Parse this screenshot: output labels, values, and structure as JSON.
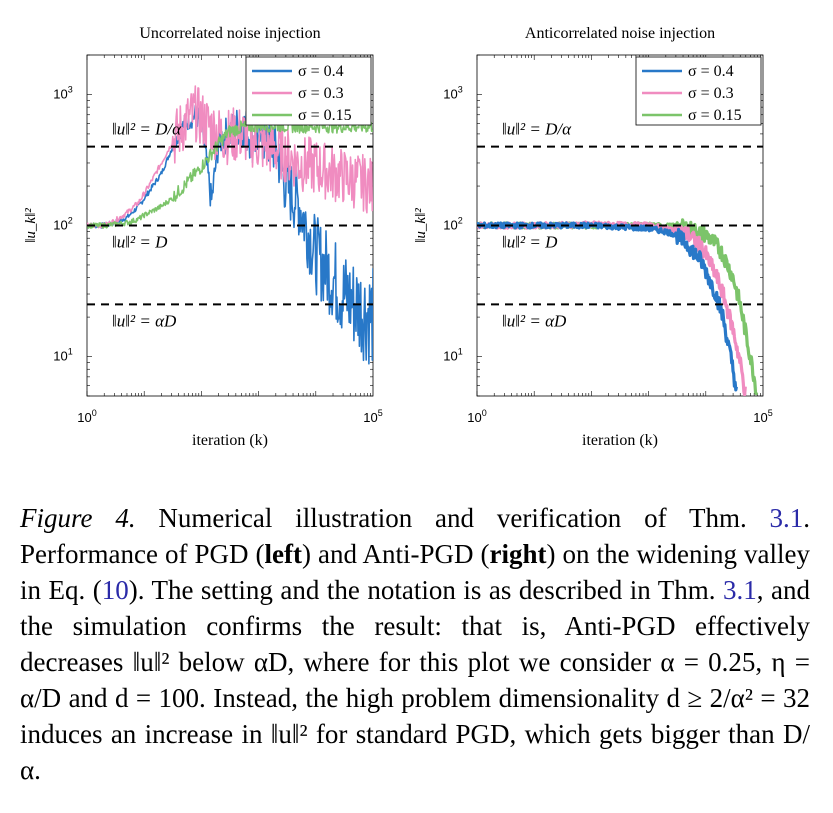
{
  "chart_data": [
    {
      "type": "line",
      "title": "Uncorrelated noise injection",
      "xlabel": "iteration (k)",
      "ylabel": "‖u_k‖²",
      "xscale": "log",
      "yscale": "log",
      "xlim": [
        1,
        100000
      ],
      "ylim": [
        5,
        2000
      ],
      "xticks": [
        {
          "value": 1,
          "base": "10",
          "exp": "0"
        },
        {
          "value": 100000,
          "base": "10",
          "exp": "5"
        }
      ],
      "yticks": [
        {
          "value": 10,
          "base": "10",
          "exp": "1"
        },
        {
          "value": 100,
          "base": "10",
          "exp": "2"
        },
        {
          "value": 1000,
          "base": "10",
          "exp": "3"
        }
      ],
      "grid": false,
      "legend_position": "top-right",
      "reference_lines": [
        {
          "value": 400,
          "label": "‖u‖² = D/α"
        },
        {
          "value": 100,
          "label": "‖u‖² = D"
        },
        {
          "value": 25,
          "label": "‖u‖² = αD"
        }
      ],
      "series": [
        {
          "name": "σ = 0.4",
          "color": "#2878c8",
          "x": [
            1,
            2,
            3,
            5,
            8,
            12,
            20,
            30,
            50,
            80,
            100,
            150,
            200,
            300,
            500,
            800,
            1000,
            2000,
            3000,
            5000,
            8000,
            10000,
            20000,
            30000,
            50000,
            100000
          ],
          "y": [
            100,
            100,
            105,
            115,
            140,
            180,
            250,
            380,
            600,
            700,
            600,
            150,
            450,
            500,
            600,
            450,
            500,
            400,
            200,
            150,
            80,
            60,
            40,
            30,
            25,
            20
          ]
        },
        {
          "name": "σ = 0.3",
          "color": "#f08cc0",
          "x": [
            1,
            2,
            3,
            5,
            8,
            12,
            20,
            30,
            50,
            80,
            100,
            150,
            200,
            300,
            500,
            800,
            1000,
            2000,
            3000,
            5000,
            10000,
            20000,
            50000,
            100000
          ],
          "y": [
            100,
            100,
            108,
            125,
            150,
            200,
            300,
            420,
            600,
            720,
            650,
            560,
            500,
            480,
            500,
            450,
            420,
            380,
            350,
            300,
            280,
            250,
            220,
            200
          ]
        },
        {
          "name": "σ = 0.15",
          "color": "#7cc46a",
          "x": [
            1,
            2,
            3,
            5,
            8,
            10,
            20,
            30,
            50,
            100,
            200,
            300,
            500,
            1000,
            2000,
            5000,
            10000,
            20000,
            50000,
            100000
          ],
          "y": [
            100,
            100,
            102,
            105,
            112,
            120,
            140,
            160,
            200,
            280,
            420,
            520,
            560,
            580,
            580,
            570,
            570,
            570,
            570,
            570
          ]
        }
      ]
    },
    {
      "type": "line",
      "title": "Anticorrelated noise injection",
      "xlabel": "iteration (k)",
      "ylabel": "‖u_k‖²",
      "xscale": "log",
      "yscale": "log",
      "xlim": [
        1,
        100000
      ],
      "ylim": [
        5,
        2000
      ],
      "xticks": [
        {
          "value": 1,
          "base": "10",
          "exp": "0"
        },
        {
          "value": 100000,
          "base": "10",
          "exp": "5"
        }
      ],
      "yticks": [
        {
          "value": 10,
          "base": "10",
          "exp": "1"
        },
        {
          "value": 100,
          "base": "10",
          "exp": "2"
        },
        {
          "value": 1000,
          "base": "10",
          "exp": "3"
        }
      ],
      "grid": false,
      "legend_position": "top-right",
      "reference_lines": [
        {
          "value": 400,
          "label": "‖u‖² = D/α"
        },
        {
          "value": 100,
          "label": "‖u‖² = D"
        },
        {
          "value": 25,
          "label": "‖u‖² = αD"
        }
      ],
      "series": [
        {
          "name": "σ = 0.4",
          "color": "#2878c8",
          "x": [
            1,
            10,
            100,
            1000,
            2000,
            3000,
            5000,
            8000,
            10000,
            15000,
            20000,
            25000,
            30000,
            35000
          ],
          "y": [
            100,
            100,
            100,
            95,
            90,
            85,
            70,
            55,
            45,
            30,
            20,
            12,
            8,
            5
          ]
        },
        {
          "name": "σ = 0.3",
          "color": "#f08cc0",
          "x": [
            1,
            10,
            100,
            1000,
            3000,
            5000,
            8000,
            10000,
            15000,
            20000,
            30000,
            40000,
            50000
          ],
          "y": [
            100,
            100,
            102,
            100,
            92,
            85,
            70,
            60,
            42,
            30,
            16,
            9,
            5
          ]
        },
        {
          "name": "σ = 0.15",
          "color": "#7cc46a",
          "x": [
            1,
            10,
            100,
            1000,
            3000,
            5000,
            10000,
            15000,
            20000,
            30000,
            40000,
            50000,
            60000,
            70000,
            80000
          ],
          "y": [
            100,
            100,
            100,
            100,
            98,
            95,
            85,
            72,
            60,
            40,
            25,
            15,
            10,
            7,
            5
          ]
        }
      ]
    }
  ],
  "caption": {
    "figure_label": "Figure 4.",
    "intro": "Numerical illustration and verification of Thm.",
    "thm_ref": "3.1",
    "text_a": ". Performance of PGD (",
    "left": "left",
    "text_b": ") and Anti-PGD (",
    "right": "right",
    "text_c": ") on the widening valley in Eq. (",
    "eq_ref": "10",
    "text_d": "). The setting and the notation is as described in Thm.",
    "thm_ref2": "3.1",
    "text_e": ", and the simulation confirms the result: that is, Anti-PGD effectively decreases ‖u‖² below αD, where for this plot we consider α = 0.25, η = α/D and d = 100. Instead, the high problem dimensionality d ≥ 2/α² = 32 induces an increase in ‖u‖² for standard PGD, which gets bigger than D/α."
  }
}
